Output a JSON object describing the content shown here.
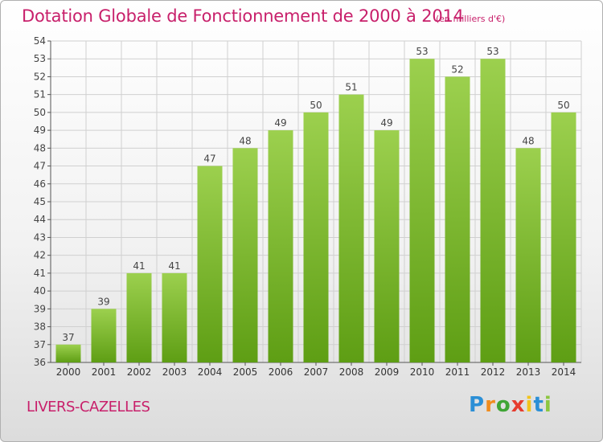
{
  "header": {
    "title": "Dotation Globale de Fonctionnement de 2000 à 2014",
    "unit": "(en milliers d'€)"
  },
  "commune": "LIVERS-CAZELLES",
  "logo": {
    "letters": [
      "P",
      "r",
      "o",
      "x",
      "i",
      "t",
      "i"
    ],
    "colors": [
      "#2b8fd6",
      "#f08c1e",
      "#3fa535",
      "#e63c2e",
      "#f2c41c",
      "#2b8fd6",
      "#8cc63f"
    ]
  },
  "colors": {
    "bar_top": "#9cd04e",
    "bar_bottom": "#5e9e14",
    "text": "#c8206b",
    "grid": "#d0d0d0"
  },
  "chart_data": {
    "type": "bar",
    "categories": [
      "2000",
      "2001",
      "2002",
      "2003",
      "2004",
      "2005",
      "2006",
      "2007",
      "2008",
      "2009",
      "2010",
      "2011",
      "2012",
      "2013",
      "2014"
    ],
    "values": [
      37,
      39,
      41,
      41,
      47,
      48,
      49,
      50,
      51,
      49,
      53,
      52,
      53,
      48,
      50
    ],
    "title": "Dotation Globale de Fonctionnement de 2000 à 2014",
    "ylim": [
      36,
      54
    ],
    "yticks": [
      36,
      37,
      38,
      39,
      40,
      41,
      42,
      43,
      44,
      45,
      46,
      47,
      48,
      49,
      50,
      51,
      52,
      53,
      54
    ],
    "grid": true,
    "legend": "none"
  }
}
